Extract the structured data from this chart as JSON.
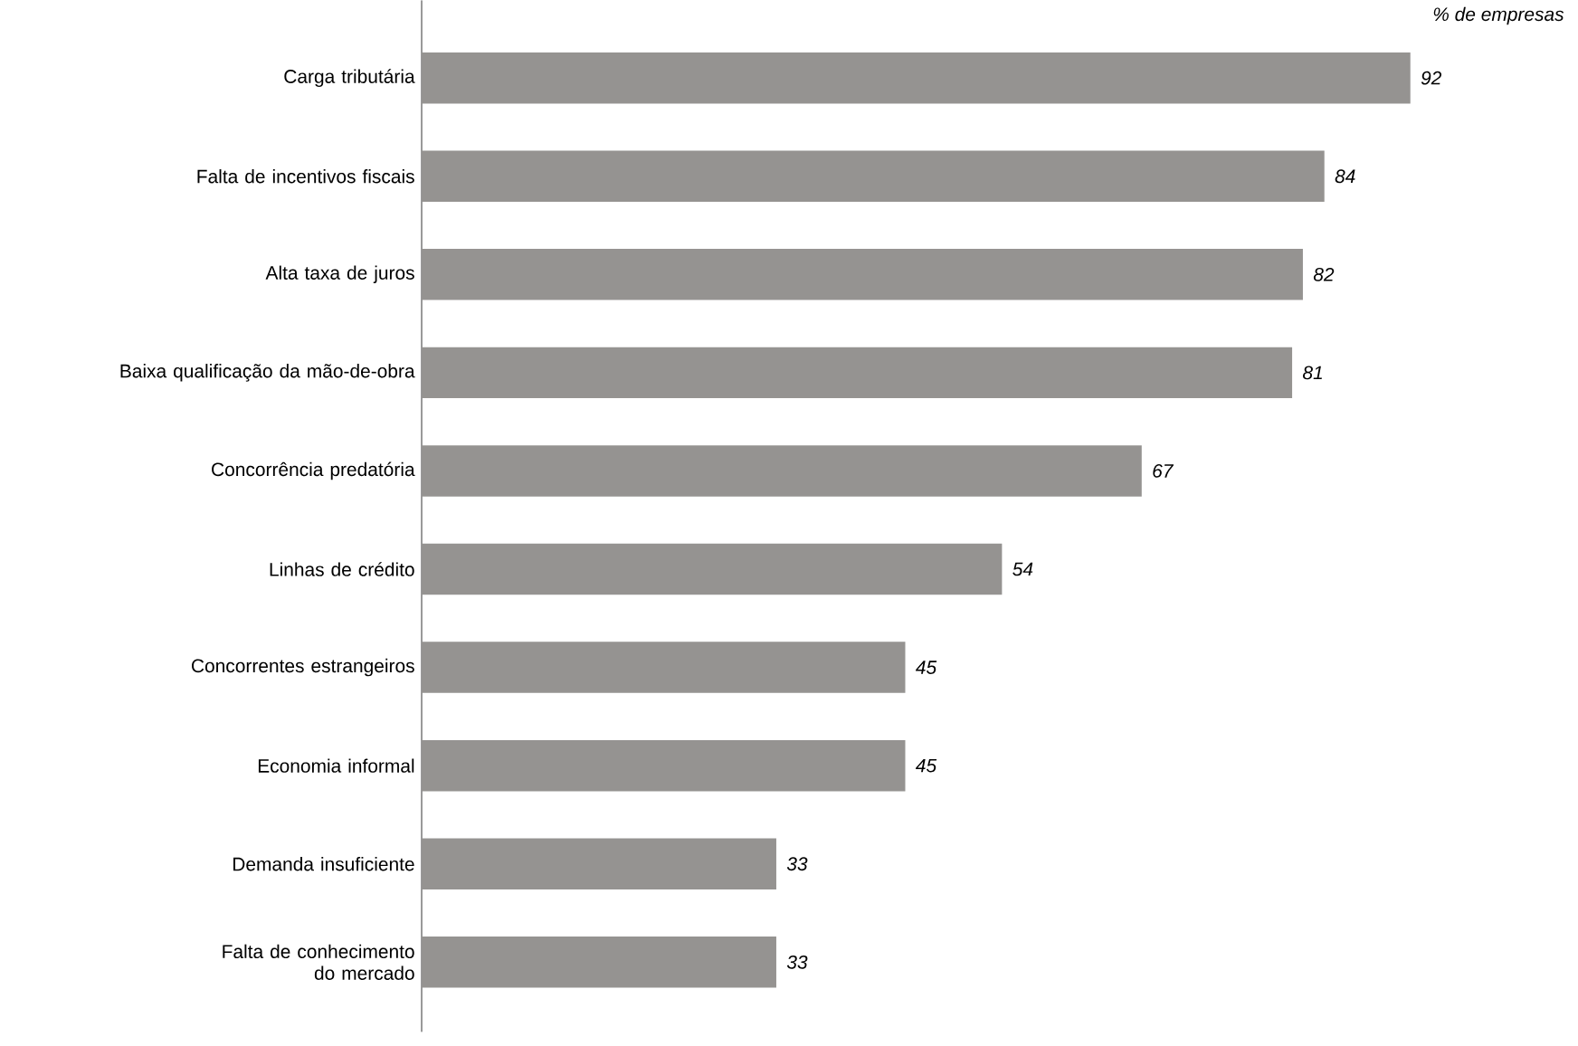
{
  "chart_data": {
    "type": "bar",
    "orientation": "horizontal",
    "xlabel": "% de empresas",
    "categories": [
      "Carga tributária",
      "Falta de incentivos fiscais",
      "Alta taxa de juros",
      "Baixa qualificação da mão-de-obra",
      "Concorrência predatória",
      "Linhas de crédito",
      "Concorrentes estrangeiros",
      "Economia informal",
      "Demanda insuficiente",
      "Falta de conhecimento do mercado"
    ],
    "values": [
      92,
      84,
      82,
      81,
      67,
      54,
      45,
      45,
      33,
      33
    ],
    "color": "#959391",
    "data_labels": true
  }
}
